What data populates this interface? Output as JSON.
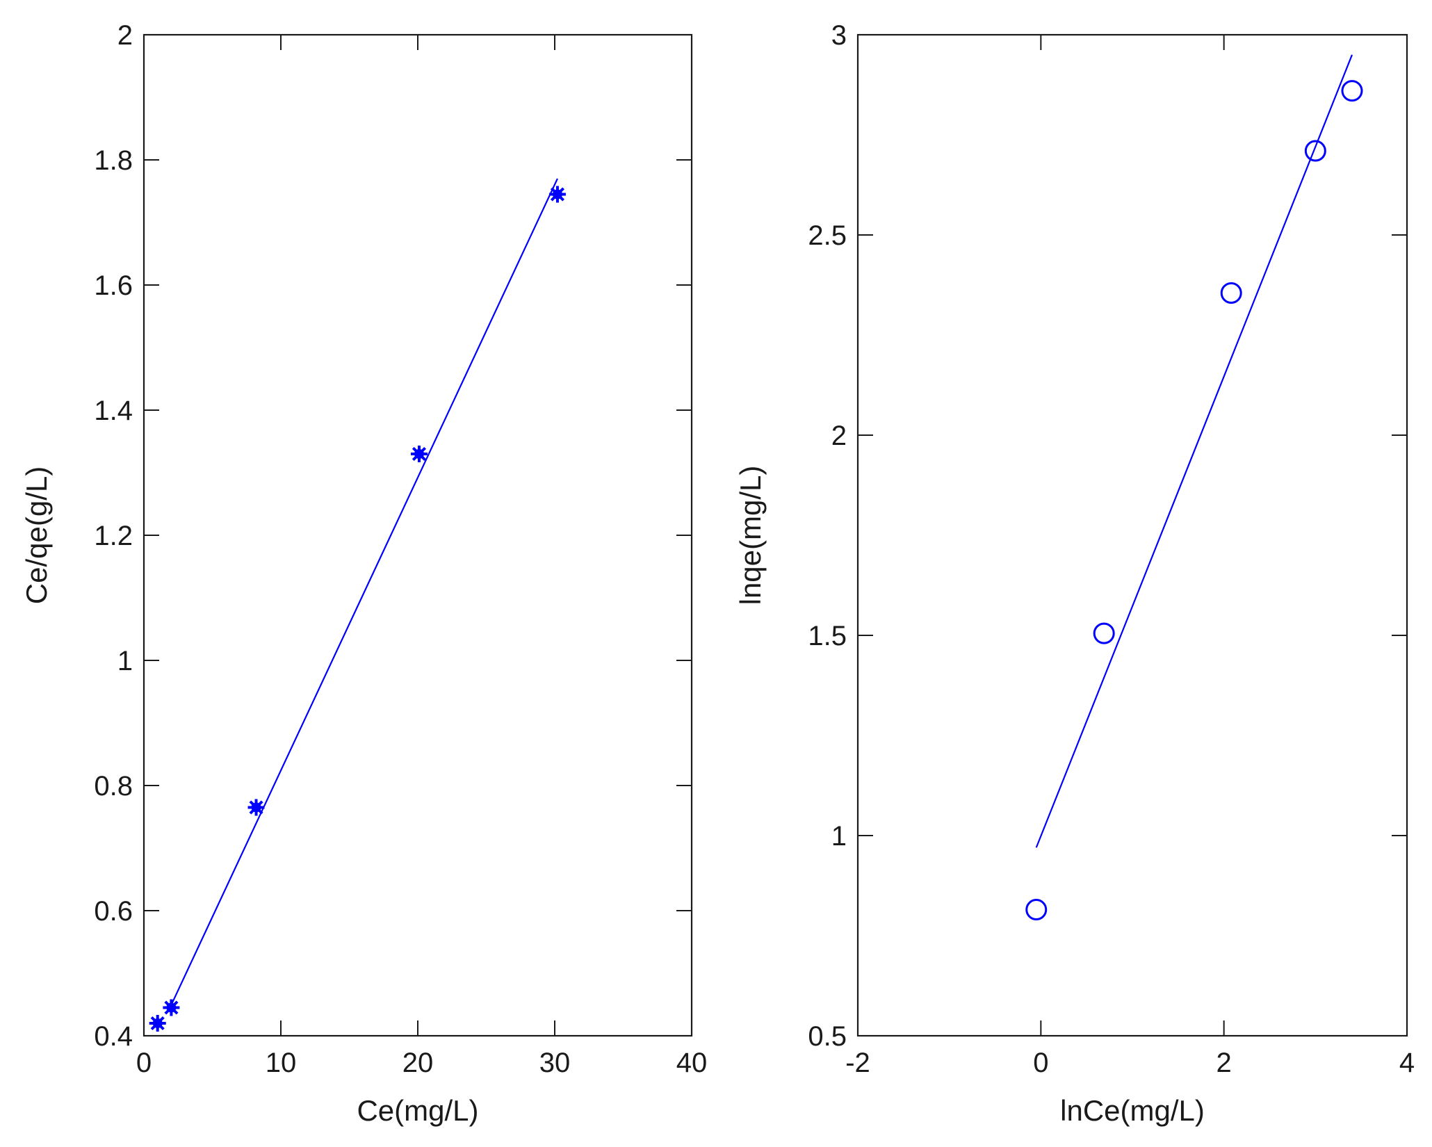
{
  "chart_data": [
    {
      "type": "scatter",
      "title": "",
      "xlabel": "Ce(mg/L)",
      "ylabel": "Ce/qe(g/L)",
      "xlim": [
        0,
        40
      ],
      "ylim": [
        0.4,
        2
      ],
      "xticks": [
        0,
        10,
        20,
        30,
        40
      ],
      "yticks": [
        0.4,
        0.6,
        0.8,
        1,
        1.2,
        1.4,
        1.6,
        1.8,
        2
      ],
      "xtick_labels": [
        "0",
        "10",
        "20",
        "30",
        "40"
      ],
      "ytick_labels": [
        "0.4",
        "0.6",
        "0.8",
        "1",
        "1.2",
        "1.4",
        "1.6",
        "1.8",
        "2"
      ],
      "grid": false,
      "marker": "asterisk",
      "color": "#0000ff",
      "points": {
        "x": [
          1.0,
          2.0,
          8.2,
          20.1,
          30.2
        ],
        "y": [
          0.42,
          0.445,
          0.765,
          1.33,
          1.745
        ]
      },
      "fit_line": {
        "x": [
          1.8,
          30.2
        ],
        "y": [
          0.44,
          1.77
        ]
      }
    },
    {
      "type": "scatter",
      "title": "",
      "xlabel": "lnCe(mg/L)",
      "ylabel": "lnqe(mg/L)",
      "xlim": [
        -2,
        4
      ],
      "ylim": [
        0.5,
        3
      ],
      "xticks": [
        -2,
        0,
        2,
        4
      ],
      "yticks": [
        0.5,
        1,
        1.5,
        2,
        2.5,
        3
      ],
      "xtick_labels": [
        "-2",
        "0",
        "2",
        "4"
      ],
      "ytick_labels": [
        "0.5",
        "1",
        "1.5",
        "2",
        "2.5",
        "3"
      ],
      "grid": false,
      "marker": "circle",
      "color": "#0000ff",
      "points": {
        "x": [
          -0.05,
          0.69,
          2.08,
          3.0,
          3.4
        ],
        "y": [
          0.815,
          1.505,
          2.355,
          2.71,
          2.86
        ]
      },
      "fit_line": {
        "x": [
          -0.05,
          3.4
        ],
        "y": [
          0.97,
          2.95
        ]
      }
    }
  ]
}
